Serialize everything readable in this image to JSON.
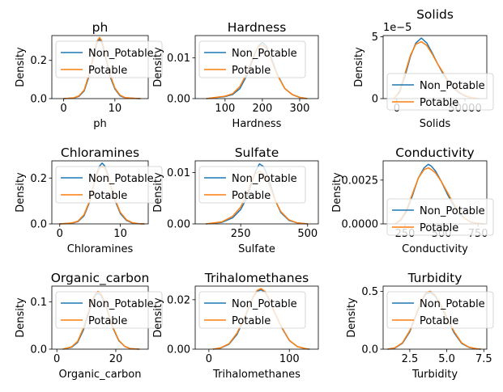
{
  "colors": {
    "Non_Potable": "#1f77b4",
    "Potable": "#ff7f0e"
  },
  "chart_data": [
    {
      "type": "line",
      "title": "ph",
      "xlabel": "ph",
      "ylabel": "Density",
      "xlim": [
        -2.3,
        16.5
      ],
      "ylim": [
        0,
        0.33
      ],
      "xticks": [
        {
          "v": 0,
          "label": "0"
        },
        {
          "v": 10,
          "label": "10"
        }
      ],
      "yticks": [
        {
          "v": 0,
          "label": "0.0"
        },
        {
          "v": 0.2,
          "label": "0.2"
        }
      ],
      "y_offset": "",
      "legend": {
        "position": "top-left",
        "entries": [
          "Non_Potable",
          "Potable"
        ]
      },
      "series": [
        {
          "name": "Non_Potable",
          "x": [
            0,
            2,
            3,
            4,
            5,
            5.5,
            6,
            6.5,
            7,
            7.5,
            8,
            8.5,
            9,
            10,
            11,
            12,
            14,
            15
          ],
          "values": [
            0.0,
            0.003,
            0.012,
            0.04,
            0.12,
            0.18,
            0.24,
            0.29,
            0.31,
            0.29,
            0.24,
            0.18,
            0.12,
            0.05,
            0.015,
            0.004,
            0.001,
            0.0
          ]
        },
        {
          "name": "Potable",
          "x": [
            0,
            2,
            3,
            4,
            5,
            5.5,
            6,
            6.5,
            7,
            7.5,
            8,
            8.5,
            9,
            10,
            11,
            12,
            14,
            15
          ],
          "values": [
            0.0,
            0.004,
            0.015,
            0.045,
            0.13,
            0.19,
            0.25,
            0.3,
            0.32,
            0.3,
            0.25,
            0.19,
            0.13,
            0.055,
            0.018,
            0.005,
            0.001,
            0.0
          ]
        }
      ]
    },
    {
      "type": "line",
      "title": "Hardness",
      "xlabel": "Hardness",
      "ylabel": "Density",
      "xlim": [
        20,
        350
      ],
      "ylim": [
        0,
        0.0155
      ],
      "xticks": [
        {
          "v": 100,
          "label": "100"
        },
        {
          "v": 200,
          "label": "200"
        },
        {
          "v": 300,
          "label": "300"
        }
      ],
      "yticks": [
        {
          "v": 0,
          "label": "0.00"
        },
        {
          "v": 0.01,
          "label": "0.01"
        }
      ],
      "y_offset": "",
      "legend": {
        "position": "top-left",
        "entries": [
          "Non_Potable",
          "Potable"
        ]
      },
      "series": [
        {
          "name": "Non_Potable",
          "x": [
            50,
            100,
            120,
            140,
            160,
            170,
            180,
            190,
            200,
            210,
            220,
            230,
            240,
            260,
            280,
            300,
            320
          ],
          "values": [
            0.0,
            0.0005,
            0.001,
            0.0025,
            0.006,
            0.0085,
            0.011,
            0.013,
            0.0138,
            0.013,
            0.011,
            0.0085,
            0.006,
            0.0025,
            0.001,
            0.0003,
            0.0
          ]
        },
        {
          "name": "Potable",
          "x": [
            50,
            100,
            120,
            140,
            160,
            170,
            180,
            190,
            200,
            210,
            220,
            230,
            240,
            260,
            280,
            300,
            320
          ],
          "values": [
            0.0,
            0.0006,
            0.0012,
            0.003,
            0.0065,
            0.009,
            0.0112,
            0.0128,
            0.0132,
            0.0125,
            0.0105,
            0.008,
            0.0058,
            0.0025,
            0.001,
            0.0003,
            0.0
          ]
        }
      ]
    },
    {
      "type": "line",
      "title": "Solids",
      "xlabel": "Solids",
      "ylabel": "Density",
      "xlim": [
        -10000,
        66000
      ],
      "ylim": [
        0,
        5.1
      ],
      "xticks": [
        {
          "v": 0,
          "label": "0"
        },
        {
          "v": 50000,
          "label": "50000"
        }
      ],
      "yticks": [
        {
          "v": 0,
          "label": "0"
        },
        {
          "v": 5,
          "label": "5"
        }
      ],
      "y_offset": "1e−5",
      "legend": {
        "position": "center",
        "entries": [
          "Non_Potable",
          "Potable"
        ]
      },
      "series": [
        {
          "name": "Non_Potable",
          "x": [
            -2000,
            2000,
            6000,
            10000,
            14000,
            18000,
            22000,
            26000,
            30000,
            34000,
            38000,
            42000,
            46000,
            50000,
            55000,
            60000
          ],
          "values": [
            0.0,
            0.5,
            1.8,
            3.4,
            4.5,
            4.9,
            4.5,
            3.7,
            2.8,
            2.0,
            1.3,
            0.8,
            0.45,
            0.2,
            0.05,
            0.0
          ]
        },
        {
          "name": "Potable",
          "x": [
            -2000,
            2000,
            6000,
            10000,
            14000,
            18000,
            22000,
            26000,
            30000,
            34000,
            38000,
            42000,
            46000,
            50000,
            55000,
            60000
          ],
          "values": [
            0.0,
            0.6,
            2.0,
            3.5,
            4.4,
            4.6,
            4.3,
            3.6,
            2.8,
            2.1,
            1.4,
            0.9,
            0.5,
            0.25,
            0.07,
            0.0
          ]
        }
      ]
    },
    {
      "type": "line",
      "title": "Chloramines",
      "xlabel": "Chloramines",
      "ylabel": "Density",
      "xlim": [
        -1.3,
        14.6
      ],
      "ylim": [
        0,
        0.275
      ],
      "xticks": [
        {
          "v": 0,
          "label": "0"
        },
        {
          "v": 10,
          "label": "10"
        }
      ],
      "yticks": [
        {
          "v": 0,
          "label": "0.0"
        },
        {
          "v": 0.2,
          "label": "0.2"
        }
      ],
      "y_offset": "",
      "legend": {
        "position": "top-left",
        "entries": [
          "Non_Potable",
          "Potable"
        ]
      },
      "series": [
        {
          "name": "Non_Potable",
          "x": [
            0,
            2,
            3,
            4,
            5,
            5.5,
            6,
            6.5,
            7,
            7.5,
            8,
            8.5,
            9,
            10,
            11,
            12,
            13,
            14
          ],
          "values": [
            0.0,
            0.003,
            0.01,
            0.035,
            0.1,
            0.16,
            0.21,
            0.25,
            0.265,
            0.25,
            0.21,
            0.16,
            0.11,
            0.045,
            0.015,
            0.004,
            0.001,
            0.0
          ]
        },
        {
          "name": "Potable",
          "x": [
            0,
            2,
            3,
            4,
            5,
            5.5,
            6,
            6.5,
            7,
            7.5,
            8,
            8.5,
            9,
            10,
            11,
            12,
            13,
            14
          ],
          "values": [
            0.0,
            0.004,
            0.012,
            0.04,
            0.105,
            0.16,
            0.205,
            0.24,
            0.25,
            0.24,
            0.205,
            0.16,
            0.115,
            0.05,
            0.018,
            0.005,
            0.001,
            0.0
          ]
        }
      ]
    },
    {
      "type": "line",
      "title": "Sulfate",
      "xlabel": "Sulfate",
      "ylabel": "Density",
      "xlim": [
        80,
        540
      ],
      "ylim": [
        0,
        0.0123
      ],
      "xticks": [
        {
          "v": 250,
          "label": "250"
        },
        {
          "v": 500,
          "label": "500"
        }
      ],
      "yticks": [
        {
          "v": 0,
          "label": "0.00"
        },
        {
          "v": 0.01,
          "label": "0.01"
        }
      ],
      "y_offset": "",
      "legend": {
        "position": "top-left",
        "entries": [
          "Non_Potable",
          "Potable"
        ]
      },
      "series": [
        {
          "name": "Non_Potable",
          "x": [
            120,
            180,
            220,
            250,
            270,
            290,
            305,
            320,
            335,
            350,
            365,
            380,
            400,
            430,
            460,
            500
          ],
          "values": [
            0.0,
            0.0003,
            0.0012,
            0.0028,
            0.0048,
            0.0078,
            0.0102,
            0.0117,
            0.0112,
            0.0095,
            0.007,
            0.0045,
            0.0022,
            0.0007,
            0.0002,
            0.0
          ]
        },
        {
          "name": "Potable",
          "x": [
            120,
            180,
            220,
            250,
            270,
            290,
            305,
            320,
            335,
            350,
            365,
            380,
            400,
            430,
            460,
            500
          ],
          "values": [
            0.0,
            0.0004,
            0.0015,
            0.0033,
            0.0055,
            0.0082,
            0.0098,
            0.0103,
            0.0098,
            0.0085,
            0.0065,
            0.0045,
            0.0024,
            0.0008,
            0.0002,
            0.0
          ]
        }
      ]
    },
    {
      "type": "line",
      "title": "Conductivity",
      "xlabel": "Conductivity",
      "ylabel": "Density",
      "xlim": [
        100,
        810
      ],
      "ylim": [
        0,
        0.0036
      ],
      "xticks": [
        {
          "v": 250,
          "label": "250"
        },
        {
          "v": 500,
          "label": "500"
        },
        {
          "v": 750,
          "label": "750"
        }
      ],
      "yticks": [
        {
          "v": 0,
          "label": "0.0000"
        },
        {
          "v": 0.0025,
          "label": "0.0025"
        }
      ],
      "y_offset": "",
      "legend": {
        "position": "center",
        "entries": [
          "Non_Potable",
          "Potable"
        ]
      },
      "series": [
        {
          "name": "Non_Potable",
          "x": [
            180,
            220,
            260,
            300,
            340,
            380,
            410,
            430,
            460,
            500,
            540,
            580,
            620,
            660,
            700,
            750,
            790
          ],
          "values": [
            0.0,
            0.0002,
            0.0007,
            0.0016,
            0.0026,
            0.0032,
            0.0034,
            0.0033,
            0.003,
            0.0024,
            0.0017,
            0.0011,
            0.0006,
            0.0003,
            0.0001,
            3e-05,
            0.0
          ]
        },
        {
          "name": "Potable",
          "x": [
            180,
            220,
            260,
            300,
            340,
            380,
            410,
            430,
            460,
            500,
            540,
            580,
            620,
            660,
            700,
            750,
            790
          ],
          "values": [
            0.0,
            0.00025,
            0.0008,
            0.0017,
            0.0026,
            0.0031,
            0.0032,
            0.0031,
            0.0029,
            0.0024,
            0.0018,
            0.0012,
            0.0007,
            0.0003,
            0.0001,
            3e-05,
            0.0
          ]
        }
      ]
    },
    {
      "type": "line",
      "title": "Organic_carbon",
      "xlabel": "Organic_carbon",
      "ylabel": "Density",
      "xlim": [
        -1.7,
        31
      ],
      "ylim": [
        0,
        0.133
      ],
      "xticks": [
        {
          "v": 0,
          "label": "0"
        },
        {
          "v": 20,
          "label": "20"
        }
      ],
      "yticks": [
        {
          "v": 0,
          "label": "0.0"
        },
        {
          "v": 0.1,
          "label": "0.1"
        }
      ],
      "y_offset": "",
      "legend": {
        "position": "top-left",
        "entries": [
          "Non_Potable",
          "Potable"
        ]
      },
      "series": [
        {
          "name": "Non_Potable",
          "x": [
            2,
            5,
            7,
            9,
            11,
            12,
            13,
            14,
            15,
            16,
            17,
            19,
            21,
            23,
            25,
            28
          ],
          "values": [
            0.0,
            0.004,
            0.014,
            0.04,
            0.08,
            0.1,
            0.113,
            0.118,
            0.113,
            0.1,
            0.083,
            0.045,
            0.018,
            0.006,
            0.001,
            0.0
          ]
        },
        {
          "name": "Potable",
          "x": [
            2,
            5,
            7,
            9,
            11,
            12,
            13,
            14,
            15,
            16,
            17,
            19,
            21,
            23,
            25,
            28
          ],
          "values": [
            0.0,
            0.005,
            0.016,
            0.044,
            0.085,
            0.104,
            0.117,
            0.122,
            0.117,
            0.104,
            0.086,
            0.047,
            0.019,
            0.006,
            0.001,
            0.0
          ]
        }
      ]
    },
    {
      "type": "line",
      "title": "Trihalomethanes",
      "xlabel": "Trihalomethanes",
      "ylabel": "Density",
      "xlim": [
        -17,
        136
      ],
      "ylim": [
        0,
        0.0255
      ],
      "xticks": [
        {
          "v": 0,
          "label": "0"
        },
        {
          "v": 100,
          "label": "100"
        }
      ],
      "yticks": [
        {
          "v": 0,
          "label": "0.00"
        },
        {
          "v": 0.02,
          "label": "0.02"
        }
      ],
      "y_offset": "",
      "legend": {
        "position": "top-left",
        "entries": [
          "Non_Potable",
          "Potable"
        ]
      },
      "series": [
        {
          "name": "Non_Potable",
          "x": [
            5,
            15,
            25,
            35,
            45,
            50,
            55,
            60,
            65,
            70,
            75,
            80,
            90,
            100,
            110,
            120,
            125
          ],
          "values": [
            0.0,
            0.0005,
            0.002,
            0.006,
            0.013,
            0.017,
            0.021,
            0.0235,
            0.024,
            0.023,
            0.02,
            0.016,
            0.009,
            0.0035,
            0.001,
            0.0002,
            0.0
          ]
        },
        {
          "name": "Potable",
          "x": [
            5,
            15,
            25,
            35,
            45,
            50,
            55,
            60,
            65,
            70,
            75,
            80,
            90,
            100,
            110,
            120,
            125
          ],
          "values": [
            0.0,
            0.0006,
            0.0022,
            0.0065,
            0.0135,
            0.0175,
            0.0213,
            0.0238,
            0.0245,
            0.0233,
            0.0203,
            0.0162,
            0.0092,
            0.0036,
            0.001,
            0.0002,
            0.0
          ]
        }
      ]
    },
    {
      "type": "line",
      "title": "Turbidity",
      "xlabel": "Turbidity",
      "ylabel": "Density",
      "xlim": [
        0.7,
        7.7
      ],
      "ylim": [
        0,
        0.545
      ],
      "xticks": [
        {
          "v": 2.5,
          "label": "2.5"
        },
        {
          "v": 5.0,
          "label": "5.0"
        },
        {
          "v": 7.5,
          "label": "7.5"
        }
      ],
      "yticks": [
        {
          "v": 0,
          "label": "0.0"
        },
        {
          "v": 0.5,
          "label": "0.5"
        }
      ],
      "y_offset": "",
      "legend": {
        "position": "top-left",
        "entries": [
          "Non_Potable",
          "Potable"
        ]
      },
      "series": [
        {
          "name": "Non_Potable",
          "x": [
            1.0,
            1.5,
            2.0,
            2.5,
            3.0,
            3.3,
            3.6,
            3.9,
            4.2,
            4.5,
            5.0,
            5.5,
            6.0,
            6.5,
            7.0,
            7.3
          ],
          "values": [
            0.0,
            0.01,
            0.05,
            0.15,
            0.32,
            0.42,
            0.48,
            0.49,
            0.46,
            0.4,
            0.27,
            0.14,
            0.05,
            0.015,
            0.003,
            0.0
          ]
        },
        {
          "name": "Potable",
          "x": [
            1.0,
            1.5,
            2.0,
            2.5,
            3.0,
            3.3,
            3.6,
            3.9,
            4.2,
            4.5,
            5.0,
            5.5,
            6.0,
            6.5,
            7.0,
            7.3
          ],
          "values": [
            0.0,
            0.012,
            0.055,
            0.16,
            0.33,
            0.43,
            0.49,
            0.5,
            0.47,
            0.41,
            0.28,
            0.15,
            0.055,
            0.017,
            0.004,
            0.0
          ]
        }
      ]
    }
  ]
}
